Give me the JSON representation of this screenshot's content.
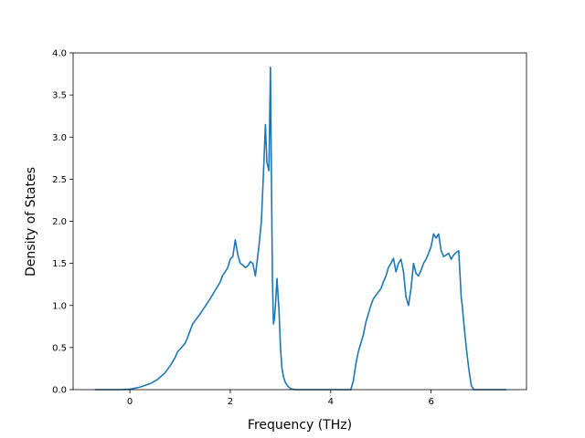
{
  "chart_data": {
    "type": "line",
    "title": "",
    "xlabel": "Frequency (THz)",
    "ylabel": "Density of States",
    "xlim": [
      -1.13,
      7.9
    ],
    "ylim": [
      0,
      4.0
    ],
    "xticks": [
      0,
      2,
      4,
      6
    ],
    "xtick_labels": [
      "0",
      "2",
      "4",
      "6"
    ],
    "yticks": [
      0,
      0.5,
      1.0,
      1.5,
      2.0,
      2.5,
      3.0,
      3.5,
      4.0
    ],
    "ytick_labels": [
      "0.0",
      "0.5",
      "1.0",
      "1.5",
      "2.0",
      "2.5",
      "3.0",
      "3.5",
      "4.0"
    ],
    "grid": false,
    "legend": "none",
    "series": [
      {
        "color": "#1f77b4",
        "x": [
          -0.7,
          -0.2,
          0.0,
          0.2,
          0.4,
          0.55,
          0.7,
          0.8,
          0.9,
          0.95,
          1.0,
          1.1,
          1.15,
          1.2,
          1.25,
          1.3,
          1.4,
          1.5,
          1.6,
          1.7,
          1.8,
          1.85,
          1.9,
          1.95,
          2.0,
          2.05,
          2.1,
          2.15,
          2.2,
          2.25,
          2.3,
          2.35,
          2.4,
          2.45,
          2.5,
          2.53,
          2.57,
          2.62,
          2.67,
          2.7,
          2.73,
          2.77,
          2.8,
          2.82,
          2.84,
          2.86,
          2.88,
          2.9,
          2.93,
          2.97,
          3.0,
          3.03,
          3.06,
          3.1,
          3.15,
          3.2,
          3.3,
          3.4,
          4.2,
          4.4,
          4.45,
          4.5,
          4.55,
          4.6,
          4.65,
          4.7,
          4.75,
          4.8,
          4.85,
          4.9,
          5.0,
          5.05,
          5.1,
          5.15,
          5.2,
          5.25,
          5.3,
          5.35,
          5.4,
          5.45,
          5.5,
          5.55,
          5.6,
          5.65,
          5.7,
          5.75,
          5.8,
          5.85,
          5.9,
          5.95,
          6.0,
          6.05,
          6.1,
          6.15,
          6.2,
          6.25,
          6.3,
          6.35,
          6.4,
          6.45,
          6.5,
          6.55,
          6.6,
          6.62,
          6.65,
          6.7,
          6.75,
          6.8,
          6.85,
          6.9,
          7.0,
          7.5
        ],
        "y": [
          0,
          0,
          0.005,
          0.03,
          0.07,
          0.12,
          0.2,
          0.28,
          0.38,
          0.45,
          0.48,
          0.55,
          0.62,
          0.7,
          0.78,
          0.82,
          0.9,
          0.99,
          1.08,
          1.18,
          1.28,
          1.36,
          1.4,
          1.45,
          1.55,
          1.58,
          1.78,
          1.6,
          1.5,
          1.48,
          1.45,
          1.47,
          1.52,
          1.5,
          1.35,
          1.5,
          1.7,
          2.0,
          2.7,
          3.15,
          2.7,
          2.6,
          3.83,
          2.5,
          1.3,
          0.78,
          0.85,
          1.0,
          1.32,
          0.95,
          0.5,
          0.25,
          0.15,
          0.08,
          0.04,
          0.01,
          0,
          0,
          0,
          0,
          0.1,
          0.3,
          0.45,
          0.55,
          0.65,
          0.8,
          0.9,
          1.0,
          1.08,
          1.12,
          1.2,
          1.28,
          1.35,
          1.45,
          1.5,
          1.56,
          1.4,
          1.5,
          1.55,
          1.4,
          1.1,
          1.0,
          1.2,
          1.5,
          1.38,
          1.35,
          1.42,
          1.5,
          1.55,
          1.62,
          1.7,
          1.85,
          1.8,
          1.85,
          1.65,
          1.58,
          1.6,
          1.62,
          1.55,
          1.6,
          1.63,
          1.65,
          1.1,
          1.0,
          0.8,
          0.5,
          0.25,
          0.05,
          0,
          0,
          0,
          0
        ]
      }
    ]
  }
}
